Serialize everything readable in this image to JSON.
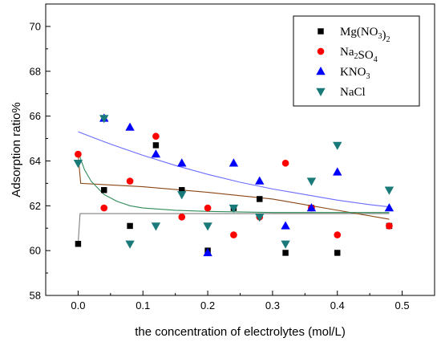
{
  "chart_data": {
    "type": "scatter",
    "xlabel": "the concentration of electrolytes (mol/L)",
    "ylabel": "Adsorption ratio%",
    "xlim": [
      -0.05,
      0.55
    ],
    "ylim": [
      58,
      71
    ],
    "xticks": [
      0.0,
      0.1,
      0.2,
      0.3,
      0.4,
      0.5
    ],
    "xtick_labels": [
      "0.0",
      "0.1",
      "0.2",
      "0.3",
      "0.4",
      "0.5"
    ],
    "yticks": [
      58,
      60,
      62,
      64,
      66,
      68,
      70
    ],
    "ytick_labels": [
      "58",
      "60",
      "62",
      "64",
      "66",
      "68",
      "70"
    ],
    "legend_position": "top-right",
    "series": [
      {
        "name": "Mg(NO3)2",
        "legend": {
          "base": "Mg(NO",
          "sub1": "3",
          "mid": ")",
          "sub2": "2"
        },
        "marker": "square",
        "color": "#000000",
        "x": [
          0.0,
          0.04,
          0.08,
          0.12,
          0.16,
          0.2,
          0.24,
          0.28,
          0.32,
          0.36,
          0.4,
          0.48
        ],
        "y": [
          60.3,
          62.7,
          61.1,
          64.7,
          62.7,
          60.0,
          61.9,
          62.3,
          59.9,
          61.9,
          59.9,
          61.1
        ],
        "fit": {
          "color": "#7f7f7f",
          "x": [
            0.0,
            0.003,
            0.48
          ],
          "y": [
            60.3,
            61.65,
            61.65
          ]
        }
      },
      {
        "name": "Na2SO4",
        "legend": {
          "base": "Na",
          "sub1": "2",
          "mid": "SO",
          "sub2": "4"
        },
        "marker": "circle",
        "color": "#ff0000",
        "x": [
          0.0,
          0.04,
          0.08,
          0.12,
          0.16,
          0.2,
          0.24,
          0.28,
          0.32,
          0.36,
          0.4,
          0.48
        ],
        "y": [
          64.3,
          61.9,
          63.1,
          65.1,
          61.5,
          61.9,
          60.7,
          61.5,
          63.9,
          61.9,
          60.7,
          61.1
        ],
        "fit": {
          "color": "#8b4513",
          "x": [
            0.0,
            0.004,
            0.1,
            0.2,
            0.3,
            0.4,
            0.48
          ],
          "y": [
            64.3,
            63.0,
            62.85,
            62.6,
            62.3,
            61.8,
            61.4
          ]
        }
      },
      {
        "name": "KNO3",
        "legend": {
          "base": "KNO",
          "sub1": "3",
          "mid": "",
          "sub2": ""
        },
        "marker": "triangle-up",
        "color": "#0000ff",
        "x": [
          0.04,
          0.08,
          0.12,
          0.16,
          0.2,
          0.24,
          0.28,
          0.32,
          0.36,
          0.4,
          0.48
        ],
        "y": [
          65.9,
          65.5,
          64.3,
          63.9,
          59.9,
          63.9,
          63.1,
          61.1,
          61.9,
          63.5,
          61.9
        ],
        "fit": {
          "color": "#6a6aff",
          "x": [
            0.0,
            0.05,
            0.1,
            0.15,
            0.2,
            0.25,
            0.3,
            0.35,
            0.4,
            0.45,
            0.48
          ],
          "y": [
            65.3,
            64.75,
            64.25,
            63.8,
            63.4,
            63.05,
            62.75,
            62.5,
            62.25,
            62.05,
            61.95
          ]
        }
      },
      {
        "name": "NaCl",
        "legend": {
          "base": "NaCl",
          "sub1": "",
          "mid": "",
          "sub2": ""
        },
        "marker": "triangle-down",
        "color": "#1a7a7a",
        "x": [
          0.0,
          0.04,
          0.08,
          0.12,
          0.16,
          0.2,
          0.24,
          0.28,
          0.32,
          0.36,
          0.4,
          0.48
        ],
        "y": [
          63.9,
          65.9,
          60.3,
          61.1,
          62.5,
          61.1,
          61.9,
          61.5,
          60.3,
          63.1,
          64.7,
          62.7
        ],
        "fit": {
          "color": "#2e8b57",
          "x": [
            0.0,
            0.01,
            0.02,
            0.04,
            0.06,
            0.08,
            0.1,
            0.15,
            0.2,
            0.3,
            0.4,
            0.48
          ],
          "y": [
            64.4,
            63.6,
            63.1,
            62.5,
            62.2,
            62.0,
            61.9,
            61.8,
            61.75,
            61.7,
            61.7,
            61.7
          ]
        }
      }
    ]
  }
}
